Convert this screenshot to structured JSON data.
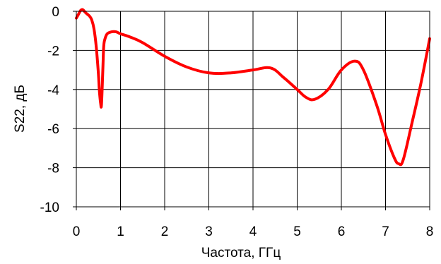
{
  "chart_data": {
    "type": "line",
    "title": "",
    "xlabel": "Частота, ГГц",
    "ylabel": "S22, дБ",
    "xlim": [
      0,
      8
    ],
    "ylim": [
      -10,
      0
    ],
    "x_ticks": [
      "0",
      "1",
      "2",
      "3",
      "4",
      "5",
      "6",
      "7",
      "8"
    ],
    "y_ticks": [
      "0",
      "-2",
      "-4",
      "-6",
      "-8",
      "-10"
    ],
    "grid": true,
    "legend": "none",
    "series": [
      {
        "color": "#ff0000",
        "x": [
          0.0,
          0.05,
          0.1,
          0.15,
          0.2,
          0.25,
          0.3,
          0.35,
          0.4,
          0.45,
          0.5,
          0.52,
          0.55,
          0.57,
          0.6,
          0.62,
          0.65,
          0.7,
          0.8,
          0.9,
          1.0,
          1.2,
          1.5,
          2.0,
          2.5,
          3.0,
          3.5,
          4.0,
          4.4,
          4.7,
          5.0,
          5.2,
          5.4,
          5.7,
          6.0,
          6.3,
          6.5,
          6.8,
          7.0,
          7.2,
          7.3,
          7.4,
          7.6,
          7.8,
          8.0
        ],
        "y": [
          -0.35,
          -0.15,
          0.05,
          0.08,
          -0.05,
          -0.15,
          -0.25,
          -0.45,
          -0.9,
          -1.8,
          -3.2,
          -4.0,
          -4.7,
          -4.75,
          -3.0,
          -1.8,
          -1.4,
          -1.15,
          -1.05,
          -1.05,
          -1.15,
          -1.3,
          -1.6,
          -2.3,
          -2.85,
          -3.15,
          -3.15,
          -3.0,
          -2.9,
          -3.4,
          -4.0,
          -4.4,
          -4.5,
          -4.0,
          -3.0,
          -2.55,
          -3.0,
          -4.8,
          -6.3,
          -7.5,
          -7.8,
          -7.6,
          -5.7,
          -3.7,
          -1.4
        ]
      }
    ]
  }
}
